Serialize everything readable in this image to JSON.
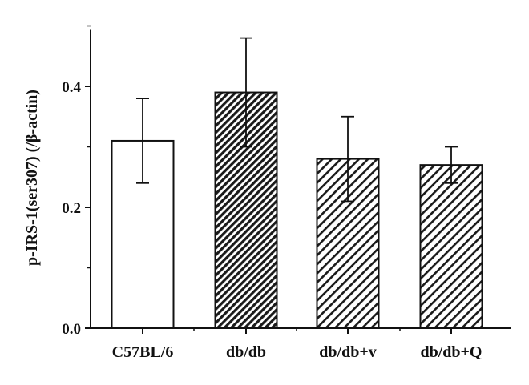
{
  "chart_data": {
    "type": "bar",
    "categories": [
      "C57BL/6",
      "db/db",
      "db/db+v",
      "db/db+Q"
    ],
    "values": [
      0.31,
      0.39,
      0.28,
      0.27
    ],
    "error": [
      0.07,
      0.09,
      0.07,
      0.03
    ],
    "fills": [
      "none",
      "dense-hatch",
      "hatch",
      "hatch"
    ],
    "ylabel": "p-IRS-1(ser307) (/β-actin)",
    "ylim": [
      0,
      0.5
    ],
    "yticks": [
      0.0,
      0.2,
      0.4
    ],
    "ytick_labels": [
      "0.0",
      "0.2",
      "0.4"
    ],
    "grid": false,
    "colors": {
      "bar_stroke": "#111111",
      "background": "#ffffff"
    }
  }
}
